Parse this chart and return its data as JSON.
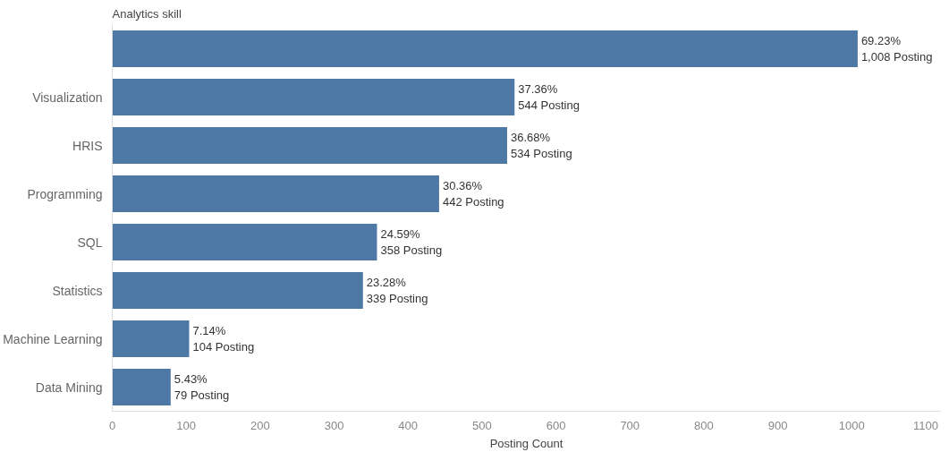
{
  "chart_data": {
    "type": "bar",
    "orientation": "horizontal",
    "ylabel": "Analytics skill",
    "xlabel": "Posting Count",
    "categories": [
      null,
      "Visualization",
      "HRIS",
      "Programming",
      "SQL",
      "Statistics",
      "Machine Learning",
      "Data Mining"
    ],
    "values": [
      1008,
      544,
      534,
      442,
      358,
      339,
      104,
      79
    ],
    "value_labels": [
      "69.23%\n1,008 Posting",
      "37.36%\n544 Posting",
      "36.68%\n534 Posting",
      "30.36%\n442 Posting",
      "24.59%\n358 Posting",
      "23.28%\n339 Posting",
      "7.14%\n104 Posting",
      "5.43%\n79 Posting"
    ],
    "color": "#4e79a7",
    "xlim": [
      0,
      1120
    ],
    "xticks": [
      0,
      100,
      200,
      300,
      400,
      500,
      600,
      700,
      800,
      900,
      1000,
      1100
    ],
    "grid": false
  }
}
